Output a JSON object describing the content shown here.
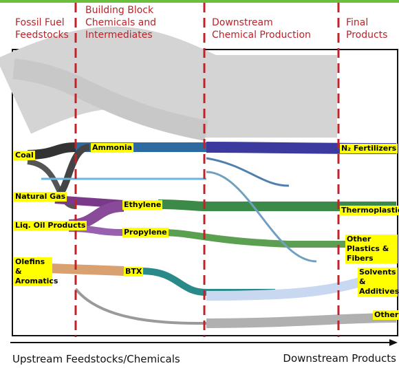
{
  "headers": [
    "Fossil Fuel Feedstocks",
    "Building Block Chemicals and Intermediates",
    "Downstream Chemical Production",
    "Final Products"
  ],
  "feedstocks": [
    "Coal",
    "Natural Gas",
    "Liq. Oil Products",
    "Olefins & Aromatics"
  ],
  "building_blocks": [
    "Ammonia",
    "Ethylene",
    "Propylene",
    "BTX"
  ],
  "final_products": [
    "N₂ Fertilizers",
    "Thermoplastics",
    "Other Plastics & Fibers",
    "Solvents & Additives",
    "Other"
  ],
  "axis": {
    "left": "Upstream Feedstocks/Chemicals",
    "right": "Downstream Products"
  }
}
